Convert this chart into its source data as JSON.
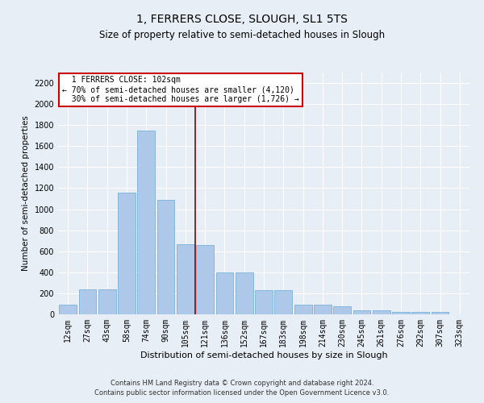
{
  "title": "1, FERRERS CLOSE, SLOUGH, SL1 5TS",
  "subtitle": "Size of property relative to semi-detached houses in Slough",
  "xlabel": "Distribution of semi-detached houses by size in Slough",
  "ylabel": "Number of semi-detached properties",
  "footnote1": "Contains HM Land Registry data © Crown copyright and database right 2024.",
  "footnote2": "Contains public sector information licensed under the Open Government Licence v3.0.",
  "bar_labels": [
    "12sqm",
    "27sqm",
    "43sqm",
    "58sqm",
    "74sqm",
    "90sqm",
    "105sqm",
    "121sqm",
    "136sqm",
    "152sqm",
    "167sqm",
    "183sqm",
    "198sqm",
    "214sqm",
    "230sqm",
    "245sqm",
    "261sqm",
    "276sqm",
    "292sqm",
    "307sqm",
    "323sqm"
  ],
  "bar_values": [
    90,
    240,
    240,
    1160,
    1750,
    1090,
    670,
    660,
    400,
    400,
    230,
    230,
    90,
    90,
    80,
    40,
    35,
    25,
    20,
    20,
    0
  ],
  "bar_color": "#adc8e8",
  "bar_edge_color": "#6aaad4",
  "bg_color": "#e8eef5",
  "grid_color": "#ffffff",
  "vline_x": 6.5,
  "vline_color": "#8b0000",
  "annotation_box_text": "  1 FERRERS CLOSE: 102sqm\n← 70% of semi-detached houses are smaller (4,120)\n  30% of semi-detached houses are larger (1,726) →",
  "annotation_box_color": "#ffffff",
  "annotation_box_edge": "#cc0000",
  "ylim": [
    0,
    2300
  ],
  "yticks": [
    0,
    200,
    400,
    600,
    800,
    1000,
    1200,
    1400,
    1600,
    1800,
    2000,
    2200
  ],
  "title_fontsize": 10,
  "subtitle_fontsize": 8.5,
  "ylabel_fontsize": 7.5,
  "xlabel_fontsize": 8,
  "tick_fontsize": 7,
  "annot_fontsize": 7,
  "footnote_fontsize": 6
}
